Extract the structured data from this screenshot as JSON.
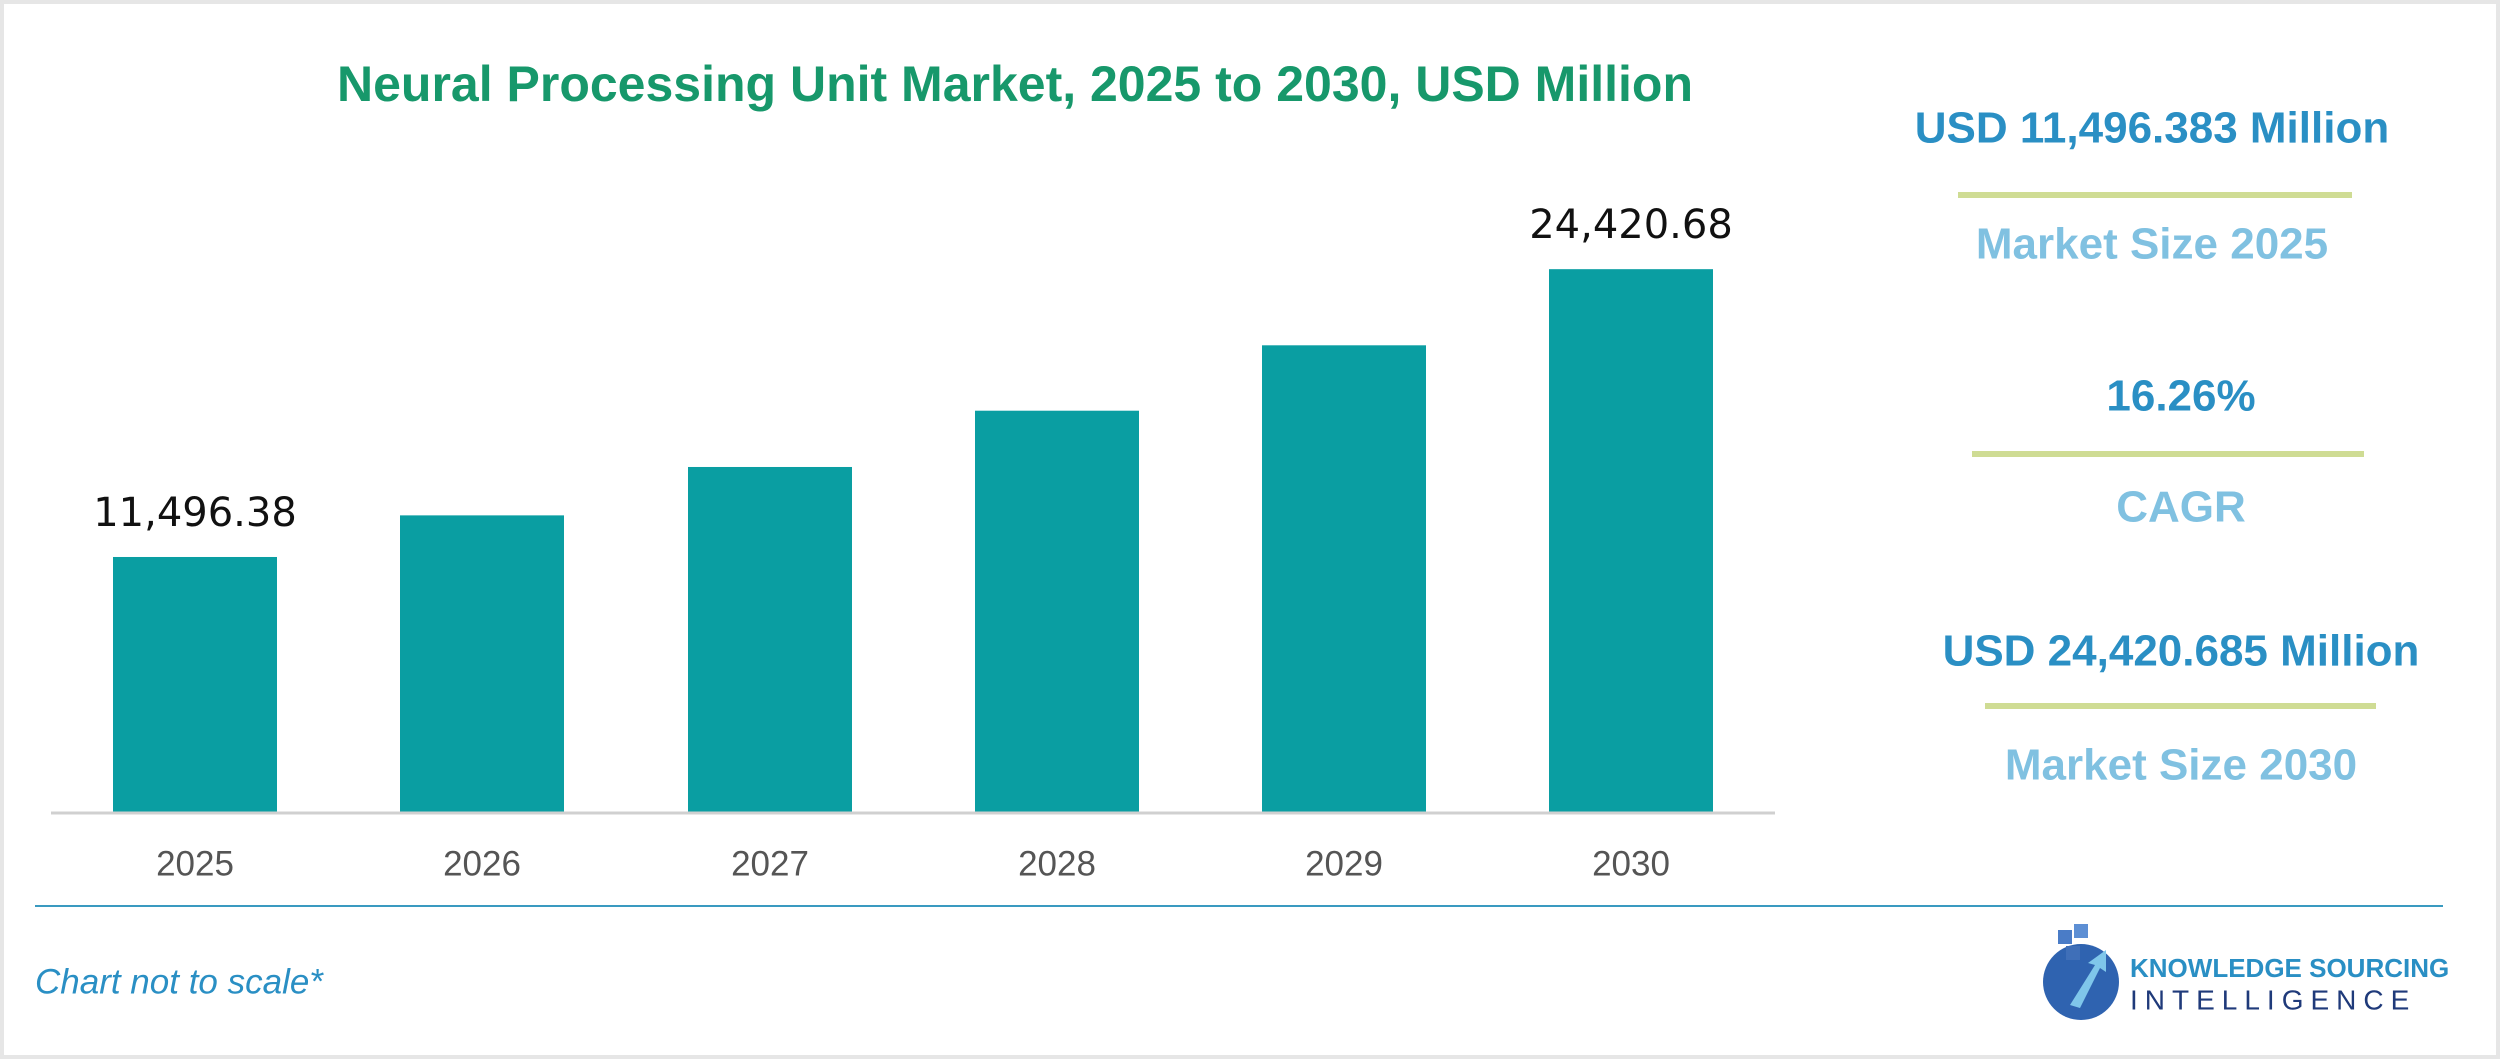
{
  "chart_data": {
    "type": "bar",
    "title": "Neural Processing Unit Market, 2025 to 2030, USD Million",
    "categories": [
      "2025",
      "2026",
      "2027",
      "2028",
      "2029",
      "2030"
    ],
    "values": [
      11496.38,
      13365,
      15538,
      18065,
      21002,
      24420.68
    ],
    "value_labels": [
      "11,496.38",
      null,
      null,
      null,
      null,
      "24,420.68"
    ],
    "color": "#0a9ea2",
    "ylim": [
      0,
      26000
    ]
  },
  "summary": [
    {
      "value": "USD 11,496.383 Million",
      "label": "Market Size 2025"
    },
    {
      "value": "16.26%",
      "label": "CAGR"
    },
    {
      "value": "USD 24,420.685 Million",
      "label": "Market Size 2030"
    }
  ],
  "footnote": "Chart not to scale*",
  "logo": {
    "line1": "KNOWLEDGE SOURCING",
    "line2": "INTELLIGENCE"
  }
}
